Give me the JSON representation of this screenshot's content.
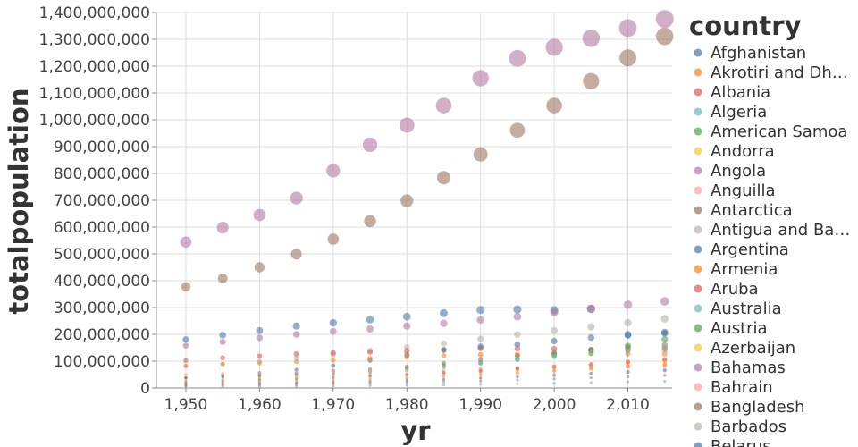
{
  "chart_data": {
    "type": "scatter",
    "xlabel": "yr",
    "ylabel": "totalpopulation",
    "xlim": [
      1946,
      2016
    ],
    "ylim": [
      0,
      1400000000
    ],
    "x_ticks": [
      1950,
      1960,
      1970,
      1980,
      1990,
      2000,
      2010
    ],
    "x_tick_labels": [
      "1,950",
      "1,960",
      "1,970",
      "1,980",
      "1,990",
      "2,000",
      "2,010"
    ],
    "y_ticks": [
      0,
      100000000,
      200000000,
      300000000,
      400000000,
      500000000,
      600000000,
      700000000,
      800000000,
      900000000,
      1000000000,
      1100000000,
      1200000000,
      1300000000,
      1400000000
    ],
    "y_tick_labels": [
      "0",
      "100,000,000",
      "200,000,000",
      "300,000,000",
      "400,000,000",
      "500,000,000",
      "600,000,000",
      "700,000,000",
      "800,000,000",
      "900,000,000",
      "1,000,000,000",
      "1,100,000,000",
      "1,200,000,000",
      "1,300,000,000",
      "1,400,000,000"
    ],
    "grid": true,
    "legend": {
      "title": "country",
      "placement": "right",
      "entries": [
        {
          "label": "Afghanistan",
          "color": "#4c78a8"
        },
        {
          "label": "Akrotiri and Dh…",
          "color": "#f58518"
        },
        {
          "label": "Albania",
          "color": "#e45756"
        },
        {
          "label": "Algeria",
          "color": "#72b7b2"
        },
        {
          "label": "American Samoa",
          "color": "#54a24b"
        },
        {
          "label": "Andorra",
          "color": "#eeca3b"
        },
        {
          "label": "Angola",
          "color": "#b279a2"
        },
        {
          "label": "Anguilla",
          "color": "#ff9da6"
        },
        {
          "label": "Antarctica",
          "color": "#9d755d"
        },
        {
          "label": "Antigua and Ba…",
          "color": "#bab0ac"
        },
        {
          "label": "Argentina",
          "color": "#4c78a8"
        },
        {
          "label": "Armenia",
          "color": "#f58518"
        },
        {
          "label": "Aruba",
          "color": "#e45756"
        },
        {
          "label": "Australia",
          "color": "#72b7b2"
        },
        {
          "label": "Austria",
          "color": "#54a24b"
        },
        {
          "label": "Azerbaijan",
          "color": "#eeca3b"
        },
        {
          "label": "Bahamas",
          "color": "#b279a2"
        },
        {
          "label": "Bahrain",
          "color": "#ff9da6"
        },
        {
          "label": "Bangladesh",
          "color": "#9d755d"
        },
        {
          "label": "Barbados",
          "color": "#bab0ac"
        },
        {
          "label": "Belarus",
          "color": "#4c78a8"
        }
      ]
    },
    "series": [
      {
        "color": "#b279a2",
        "x": [
          1950,
          1955,
          1960,
          1965,
          1970,
          1975,
          1980,
          1985,
          1990,
          1995,
          2000,
          2005,
          2010,
          2015
        ],
        "y": [
          544000000,
          598000000,
          645000000,
          708000000,
          810000000,
          907000000,
          980000000,
          1053000000,
          1155000000,
          1229000000,
          1270000000,
          1304000000,
          1342000000,
          1376000000
        ]
      },
      {
        "color": "#9d755d",
        "x": [
          1950,
          1955,
          1960,
          1965,
          1970,
          1975,
          1980,
          1985,
          1990,
          1995,
          2000,
          2005,
          2010,
          2015
        ],
        "y": [
          377000000,
          409000000,
          450000000,
          499000000,
          555000000,
          622000000,
          698000000,
          784000000,
          871000000,
          961000000,
          1053000000,
          1144000000,
          1231000000,
          1311000000
        ]
      },
      {
        "color": "#4c78a8",
        "x": [
          1950,
          1955,
          1960,
          1965,
          1970,
          1975,
          1980,
          1985,
          1990,
          1995,
          2000,
          2005,
          2010,
          2015
        ],
        "y": [
          181000000,
          197000000,
          214000000,
          231000000,
          243000000,
          255000000,
          266000000,
          279000000,
          291000000,
          293000000,
          290000000,
          295000000,
          200000000,
          208000000
        ]
      },
      {
        "color": "#b279a2",
        "x": [
          1950,
          1955,
          1960,
          1965,
          1970,
          1975,
          1980,
          1985,
          1990,
          1995,
          2000,
          2005,
          2010,
          2015
        ],
        "y": [
          158000000,
          172000000,
          187000000,
          200000000,
          211000000,
          220000000,
          231000000,
          241000000,
          254000000,
          266000000,
          282000000,
          296000000,
          311000000,
          323000000
        ]
      },
      {
        "color": "#bab0ac",
        "x": [
          1950,
          1955,
          1960,
          1965,
          1970,
          1975,
          1980,
          1985,
          1990,
          1995,
          2000,
          2005,
          2010,
          2015
        ],
        "y": [
          80000000,
          90000000,
          100000000,
          112000000,
          125000000,
          140000000,
          152000000,
          166000000,
          183000000,
          199000000,
          214000000,
          228000000,
          243000000,
          258000000
        ]
      },
      {
        "color": "#e45756",
        "x": [
          1950,
          1955,
          1960,
          1965,
          1970,
          1975,
          1980,
          1985,
          1990,
          1995,
          2000,
          2005,
          2010,
          2015
        ],
        "y": [
          102000000,
          112000000,
          119000000,
          127000000,
          131000000,
          134000000,
          138000000,
          142000000,
          148000000,
          147000000,
          146000000,
          143000000,
          143000000,
          144000000
        ]
      },
      {
        "color": "#4c78a8",
        "x": [
          1950,
          1955,
          1960,
          1965,
          1970,
          1975,
          1980,
          1985,
          1990,
          1995,
          2000,
          2005,
          2010,
          2015
        ],
        "y": [
          38000000,
          47000000,
          56000000,
          68000000,
          83000000,
          103000000,
          123000000,
          142000000,
          155000000,
          163000000,
          175000000,
          188000000,
          196000000,
          204000000
        ]
      },
      {
        "color": "#f58518",
        "x": [
          1950,
          1955,
          1960,
          1965,
          1970,
          1975,
          1980,
          1985,
          1990,
          1995,
          2000,
          2005,
          2010,
          2015
        ],
        "y": [
          83000000,
          89000000,
          93000000,
          98000000,
          104000000,
          111000000,
          117000000,
          121000000,
          124000000,
          125000000,
          127000000,
          128000000,
          128000000,
          127000000
        ]
      },
      {
        "color": "#9d755d",
        "x": [
          1950,
          1955,
          1960,
          1965,
          1970,
          1975,
          1980,
          1985,
          1990,
          1995,
          2000,
          2005,
          2010,
          2015
        ],
        "y": [
          38000000,
          42000000,
          48000000,
          55000000,
          65000000,
          70000000,
          79000000,
          92000000,
          106000000,
          120000000,
          131000000,
          142000000,
          152000000,
          160000000
        ]
      },
      {
        "color": "#54a24b",
        "x": [
          1950,
          1955,
          1960,
          1965,
          1970,
          1975,
          1980,
          1985,
          1990,
          1995,
          2000,
          2005,
          2010,
          2015
        ],
        "y": [
          37000000,
          42000000,
          45000000,
          50000000,
          56000000,
          62000000,
          74000000,
          83000000,
          95000000,
          107000000,
          123000000,
          139000000,
          158000000,
          182000000
        ]
      },
      {
        "color": "#72b7b2",
        "x": [
          1950,
          1955,
          1960,
          1965,
          1970,
          1975,
          1980,
          1985,
          1990,
          1995,
          2000,
          2005,
          2010,
          2015
        ],
        "y": [
          28000000,
          32000000,
          36000000,
          41000000,
          47000000,
          54000000,
          66000000,
          78000000,
          92000000,
          106000000,
          117000000,
          130000000,
          140000000,
          150000000
        ]
      },
      {
        "color": "#ff9da6",
        "x": [
          1950,
          1955,
          1960,
          1965,
          1970,
          1975,
          1980,
          1985,
          1990,
          1995,
          2000,
          2005,
          2010,
          2015
        ],
        "y": [
          50000000,
          53000000,
          55000000,
          59000000,
          61000000,
          63000000,
          65000000,
          67000000,
          70000000,
          73000000,
          75000000,
          78000000,
          80000000,
          82000000
        ]
      },
      {
        "color": "#eeca3b",
        "x": [
          1950,
          1955,
          1960,
          1965,
          1970,
          1975,
          1980,
          1985,
          1990,
          1995,
          2000,
          2005,
          2010,
          2015
        ],
        "y": [
          20000000,
          24000000,
          28000000,
          32000000,
          36000000,
          42000000,
          48000000,
          55000000,
          62000000,
          69000000,
          76000000,
          84000000,
          92000000,
          100000000
        ]
      },
      {
        "color": "#e45756",
        "x": [
          1950,
          1955,
          1960,
          1965,
          1970,
          1975,
          1980,
          1985,
          1990,
          1995,
          2000,
          2005,
          2010,
          2015
        ],
        "y": [
          21000000,
          26000000,
          30000000,
          34000000,
          39000000,
          44000000,
          50000000,
          57000000,
          64000000,
          72000000,
          80000000,
          88000000,
          97000000,
          106000000
        ]
      },
      {
        "color": "#f58518",
        "x": [
          1950,
          1955,
          1960,
          1965,
          1970,
          1975,
          1980,
          1985,
          1990,
          1995,
          2000,
          2005,
          2010,
          2015
        ],
        "y": [
          15000000,
          18000000,
          21000000,
          24000000,
          28000000,
          32000000,
          37000000,
          43000000,
          50000000,
          57000000,
          64000000,
          72000000,
          80000000,
          88000000
        ]
      },
      {
        "color": "#4c78a8",
        "x": [
          1950,
          1955,
          1960,
          1965,
          1970,
          1975,
          1980,
          1985,
          1990,
          1995,
          2000,
          2005,
          2010,
          2015
        ],
        "y": [
          12000000,
          14000000,
          16000000,
          18000000,
          21000000,
          24000000,
          28000000,
          32000000,
          37000000,
          42000000,
          48000000,
          54000000,
          60000000,
          66000000
        ]
      },
      {
        "color": "#b279a2",
        "x": [
          1950,
          1955,
          1960,
          1965,
          1970,
          1975,
          1980,
          1985,
          1990,
          1995,
          2000,
          2005,
          2010,
          2015
        ],
        "y": [
          8000000,
          10000000,
          11000000,
          13000000,
          15000000,
          17000000,
          20000000,
          23000000,
          26000000,
          30000000,
          34000000,
          38000000,
          42000000,
          47000000
        ]
      },
      {
        "color": "#72b7b2",
        "x": [
          1950,
          1955,
          1960,
          1965,
          1970,
          1975,
          1980,
          1985,
          1990,
          1995,
          2000,
          2005,
          2010,
          2015
        ],
        "y": [
          4000000,
          5000000,
          6000000,
          7000000,
          8000000,
          9000000,
          11000000,
          12000000,
          14000000,
          16000000,
          18000000,
          20000000,
          23000000,
          25000000
        ]
      }
    ]
  }
}
